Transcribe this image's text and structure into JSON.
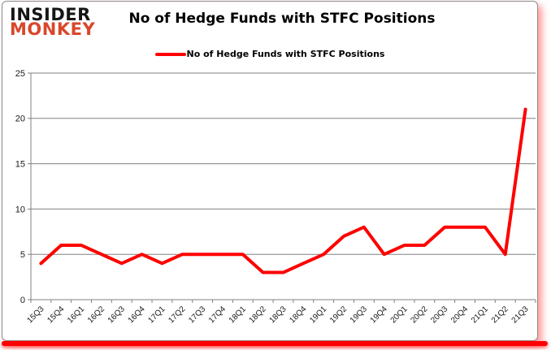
{
  "brand": {
    "line1": "INSIDER",
    "line2": "MONKEY",
    "line1_color": "#161616",
    "line2_color": "#d9472b"
  },
  "header": {
    "title": "No of Hedge Funds with STFC Positions"
  },
  "legend": {
    "label": "No of Hedge Funds with STFC Positions",
    "line_color": "#ff0000"
  },
  "frame": {
    "accent_color": "#ff0000",
    "border_color": "#8c8c8c"
  },
  "chart_data": {
    "type": "line",
    "title": "No of Hedge Funds with STFC Positions",
    "categories": [
      "15Q3",
      "15Q4",
      "16Q1",
      "16Q2",
      "16Q3",
      "16Q4",
      "17Q1",
      "17Q2",
      "17Q3",
      "17Q4",
      "18Q1",
      "18Q2",
      "18Q3",
      "18Q4",
      "19Q1",
      "19Q2",
      "19Q3",
      "19Q4",
      "20Q1",
      "20Q2",
      "20Q3",
      "20Q4",
      "21Q1",
      "21Q2",
      "21Q3"
    ],
    "series": [
      {
        "name": "No of Hedge Funds with STFC Positions",
        "color": "#ff0000",
        "values": [
          4,
          6,
          6,
          5,
          4,
          5,
          4,
          5,
          5,
          5,
          5,
          3,
          3,
          4,
          5,
          7,
          8,
          5,
          6,
          6,
          8,
          8,
          8,
          5,
          21
        ]
      }
    ],
    "xlabel": "",
    "ylabel": "",
    "ylim": [
      0,
      25
    ],
    "yticks": [
      0,
      5,
      10,
      15,
      20,
      25
    ],
    "grid": true,
    "legend_position": "top",
    "axis_color": "#808080",
    "tick_label_color": "#1a1a1a"
  }
}
